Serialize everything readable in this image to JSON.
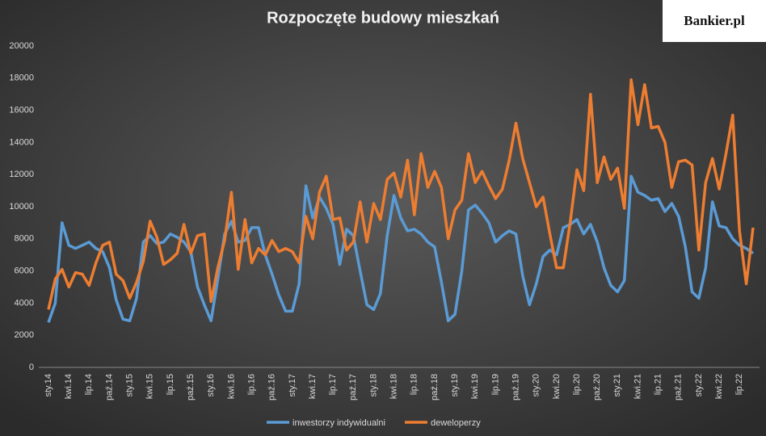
{
  "logo": "Bankier.pl",
  "chart_data": {
    "type": "line",
    "title": "Rozpoczęte budowy mieszkań",
    "categories": [
      "sty.14",
      null,
      null,
      "kwi.14",
      null,
      null,
      "lip.14",
      null,
      null,
      "paź.14",
      null,
      null,
      "sty.15",
      null,
      null,
      "kwi.15",
      null,
      null,
      "lip.15",
      null,
      null,
      "paź.15",
      null,
      null,
      "sty.16",
      null,
      null,
      "kwi.16",
      null,
      null,
      "lip.16",
      null,
      null,
      "paź.16",
      null,
      null,
      "sty.17",
      null,
      null,
      "kwi.17",
      null,
      null,
      "lip.17",
      null,
      null,
      "paź.17",
      null,
      null,
      "sty.18",
      null,
      null,
      "kwi.18",
      null,
      null,
      "lip.18",
      null,
      null,
      "paź.18",
      null,
      null,
      "sty.19",
      null,
      null,
      "kwi.19",
      null,
      null,
      "lip.19",
      null,
      null,
      "paź.19",
      null,
      null,
      "sty.20",
      null,
      null,
      "kwi.20",
      null,
      null,
      "lip.20",
      null,
      null,
      "paź.20",
      null,
      null,
      "sty.21",
      null,
      null,
      "kwi.21",
      null,
      null,
      "lip.21",
      null,
      null,
      "paź.21",
      null,
      null,
      "sty.22",
      null,
      null,
      "kwi.22",
      null,
      null,
      "lip.22",
      null,
      null
    ],
    "series": [
      {
        "name": "inwestorzy indywidualni",
        "color": "#5b9bd5",
        "values": [
          2800,
          4000,
          9000,
          7600,
          7400,
          7600,
          7800,
          7400,
          7200,
          6200,
          4200,
          3000,
          2900,
          4300,
          7800,
          8200,
          7700,
          7800,
          8300,
          8100,
          7800,
          7200,
          5000,
          3900,
          2900,
          5500,
          8300,
          9100,
          7800,
          7900,
          8700,
          8700,
          7000,
          5800,
          4500,
          3500,
          3500,
          5200,
          11300,
          9300,
          10600,
          9900,
          8900,
          6400,
          8600,
          8200,
          6000,
          3900,
          3600,
          4600,
          8200,
          10700,
          9300,
          8500,
          8600,
          8300,
          7800,
          7500,
          5300,
          2900,
          3300,
          6000,
          9800,
          10100,
          9600,
          9000,
          7800,
          8200,
          8500,
          8300,
          5700,
          3900,
          5200,
          6900,
          7300,
          7000,
          8700,
          8900,
          9200,
          8300,
          8900,
          7800,
          6200,
          5100,
          4700,
          5400,
          11900,
          10900,
          10700,
          10400,
          10500,
          9700,
          10200,
          9400,
          7500,
          4700,
          4300,
          6200,
          10300,
          8800,
          8700,
          8000,
          7600,
          7400,
          7100
        ]
      },
      {
        "name": "deweloperzy",
        "color": "#ed7d31",
        "values": [
          3600,
          5500,
          6100,
          5000,
          5900,
          5800,
          5100,
          6500,
          7600,
          7800,
          5800,
          5400,
          4300,
          5300,
          6600,
          9100,
          8100,
          6400,
          6700,
          7100,
          8900,
          7100,
          8200,
          8300,
          4100,
          6200,
          7900,
          10900,
          6100,
          9200,
          6500,
          7400,
          7000,
          7900,
          7200,
          7400,
          7200,
          6500,
          9400,
          8000,
          10900,
          11900,
          9200,
          9300,
          7300,
          7800,
          10300,
          7800,
          10200,
          9200,
          11700,
          12100,
          10600,
          12900,
          9500,
          13300,
          11200,
          12200,
          11200,
          8000,
          9800,
          10400,
          13300,
          11500,
          12200,
          11300,
          10500,
          11100,
          12900,
          15200,
          13000,
          11500,
          10000,
          10600,
          8300,
          6200,
          6200,
          9000,
          12300,
          11000,
          17000,
          11500,
          13100,
          11700,
          12400,
          9900,
          17900,
          15100,
          17600,
          14900,
          15000,
          14000,
          11200,
          12800,
          12900,
          12600,
          7300,
          11500,
          13000,
          11100,
          13300,
          15700,
          8500,
          5200,
          8700
        ]
      }
    ],
    "ylim": [
      0,
      20000
    ],
    "yticks": [
      0,
      2000,
      4000,
      6000,
      8000,
      10000,
      12000,
      14000,
      16000,
      18000,
      20000
    ],
    "grid": false,
    "legend": "bottom"
  }
}
